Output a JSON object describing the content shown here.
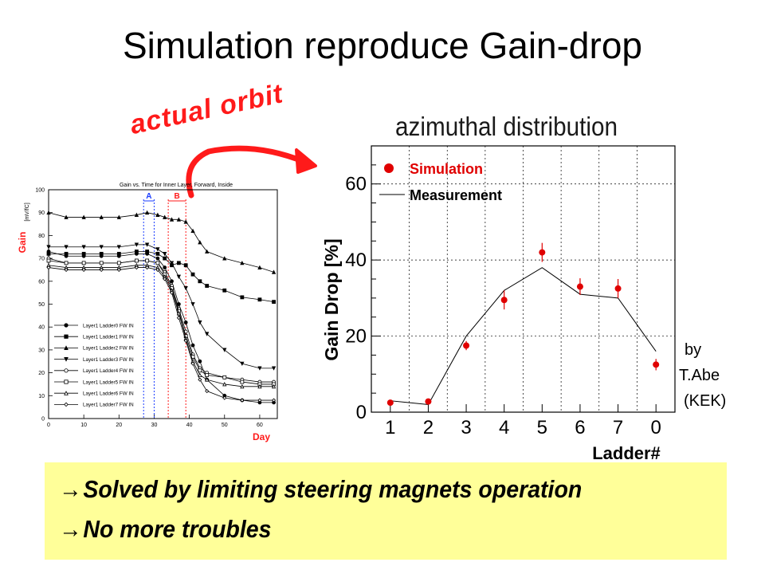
{
  "slide": {
    "title": "Simulation reproduce Gain-drop",
    "orbit_label": "actual orbit",
    "azimuthal_label": "azimuthal distribution",
    "credit": [
      "by",
      "T.Abe",
      "(KEK)"
    ],
    "banner": [
      {
        "arrow": "→",
        "text": "Solved by limiting steering magnets operation"
      },
      {
        "arrow": "→",
        "text": "No more troubles"
      }
    ],
    "colors": {
      "accent": "#ff1a1a",
      "banner": "#ffff99",
      "marker_a": "#1a3cff",
      "marker_b": "#ff1a1a"
    }
  },
  "chart_data": [
    {
      "type": "line",
      "title": "Gain vs. Time for Inner Layer, Forward, Inside",
      "xlabel": "Day",
      "ylabel": "Gain",
      "ylabel_unit": "[mV/fC]",
      "xlim": [
        0,
        65
      ],
      "ylim": [
        0,
        100
      ],
      "x_ticks": [
        0,
        10,
        20,
        30,
        40,
        50,
        60
      ],
      "y_ticks": [
        0,
        10,
        20,
        30,
        40,
        50,
        60,
        70,
        80,
        90,
        100
      ],
      "grid": false,
      "legend_position": "bottom-left",
      "markers": [
        {
          "label": "A",
          "from": 27,
          "to": 30,
          "color": "#1a3cff"
        },
        {
          "label": "B",
          "from": 34,
          "to": 39,
          "color": "#ff1a1a"
        }
      ],
      "x": [
        0,
        5,
        10,
        15,
        20,
        25,
        28,
        31,
        33,
        35,
        37,
        39,
        41,
        43,
        45,
        50,
        55,
        60,
        64
      ],
      "series": [
        {
          "name": "Layer1 Ladder0 FW IN",
          "marker": "circle-filled",
          "values": [
            73,
            71,
            71,
            71,
            71,
            72,
            72,
            70,
            66,
            60,
            50,
            42,
            32,
            25,
            17,
            10,
            8,
            7,
            7
          ]
        },
        {
          "name": "Layer1 Ladder1 FW IN",
          "marker": "square-filled",
          "values": [
            72,
            72,
            72,
            72,
            72,
            73,
            73,
            72,
            70,
            67,
            68,
            67,
            63,
            60,
            58,
            56,
            53,
            52,
            51
          ]
        },
        {
          "name": "Layer1 Ladder2 FW IN",
          "marker": "triangle-filled",
          "values": [
            90,
            88,
            88,
            88,
            88,
            89,
            90,
            89,
            88,
            87,
            87,
            86,
            82,
            77,
            73,
            70,
            68,
            66,
            64
          ]
        },
        {
          "name": "Layer1 Ladder3 FW IN",
          "marker": "triangle-down-filled",
          "values": [
            75,
            75,
            75,
            75,
            75,
            76,
            76,
            74,
            72,
            68,
            62,
            57,
            50,
            42,
            37,
            30,
            24,
            22,
            22
          ]
        },
        {
          "name": "Layer1 Ladder4 FW IN",
          "marker": "circle-open",
          "values": [
            70,
            68,
            68,
            68,
            68,
            69,
            69,
            68,
            64,
            58,
            48,
            38,
            28,
            22,
            20,
            18,
            17,
            16,
            16
          ]
        },
        {
          "name": "Layer1 Ladder5 FW IN",
          "marker": "square-open",
          "values": [
            69,
            68,
            68,
            68,
            68,
            69,
            69,
            68,
            63,
            57,
            47,
            36,
            27,
            21,
            19,
            18,
            16,
            15,
            15
          ]
        },
        {
          "name": "Layer1 Ladder6 FW IN",
          "marker": "triangle-open",
          "values": [
            67,
            66,
            66,
            66,
            66,
            67,
            67,
            66,
            62,
            56,
            46,
            35,
            25,
            19,
            17,
            15,
            14,
            14,
            14
          ]
        },
        {
          "name": "Layer1 Ladder7 FW IN",
          "marker": "diamond-open",
          "values": [
            66,
            65,
            65,
            65,
            65,
            66,
            66,
            65,
            61,
            55,
            44,
            34,
            24,
            17,
            12,
            9,
            8,
            8,
            8
          ]
        }
      ]
    },
    {
      "type": "scatter",
      "title": "",
      "xlabel": "Ladder#",
      "ylabel": "Gain Drop  [%]",
      "categories": [
        "1",
        "2",
        "3",
        "4",
        "5",
        "6",
        "7",
        "0"
      ],
      "ylim": [
        0,
        70
      ],
      "y_ticks": [
        0,
        20,
        40,
        60
      ],
      "grid": true,
      "legend_position": "top-left",
      "series": [
        {
          "name": "Simulation",
          "kind": "points",
          "color": "#e00000",
          "values": [
            2.5,
            2.8,
            17.5,
            29.5,
            42,
            33,
            32.5,
            12.5
          ],
          "error": [
            0.6,
            0.6,
            1.2,
            2.5,
            2.5,
            2.2,
            2.5,
            1.5
          ]
        },
        {
          "name": "Measurement",
          "kind": "line",
          "color": "#000000",
          "values": [
            3,
            2,
            20,
            32,
            38,
            31,
            30,
            16
          ]
        }
      ]
    }
  ]
}
